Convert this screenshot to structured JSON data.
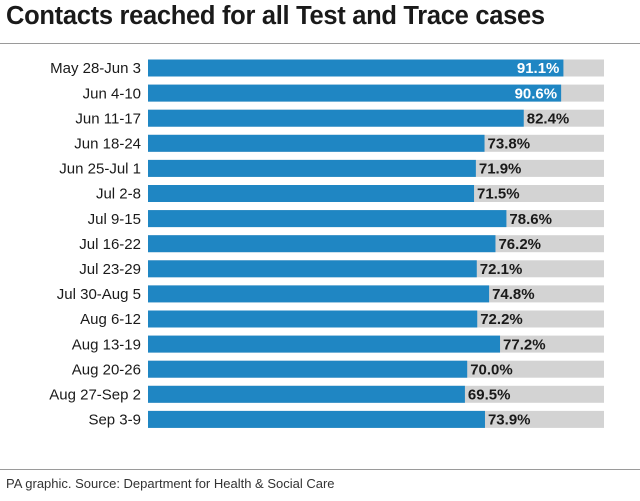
{
  "title": "Contacts reached for all Test and Trace cases",
  "source": "PA graphic. Source: Department for Health & Social Care",
  "colors": {
    "bar": "#1f86c3",
    "track": "#d3d3d3",
    "label_dark": "#1a1a1a",
    "label_light": "#ffffff"
  },
  "chart_data": {
    "type": "bar",
    "orientation": "horizontal",
    "title": "Contacts reached for all Test and Trace cases",
    "xlabel": "",
    "ylabel": "",
    "xlim": [
      0,
      100
    ],
    "unit": "%",
    "grid": false,
    "categories": [
      "May 28-Jun 3",
      "Jun 4-10",
      "Jun 11-17",
      "Jun 18-24",
      "Jun 25-Jul 1",
      "Jul 2-8",
      "Jul 9-15",
      "Jul 16-22",
      "Jul 23-29",
      "Jul 30-Aug 5",
      "Aug 6-12",
      "Aug 13-19",
      "Aug 20-26",
      "Aug 27-Sep 2",
      "Sep 3-9"
    ],
    "values": [
      91.1,
      90.6,
      82.4,
      73.8,
      71.9,
      71.5,
      78.6,
      76.2,
      72.1,
      74.8,
      72.2,
      77.2,
      70.0,
      69.5,
      73.9
    ],
    "value_labels": [
      "91.1%",
      "90.6%",
      "82.4%",
      "73.8%",
      "71.9%",
      "71.5%",
      "78.6%",
      "76.2%",
      "72.1%",
      "74.8%",
      "72.2%",
      "77.2%",
      "70.0%",
      "69.5%",
      "73.9%"
    ],
    "inside_label_from_index": 0,
    "inside_label_count": 2
  }
}
